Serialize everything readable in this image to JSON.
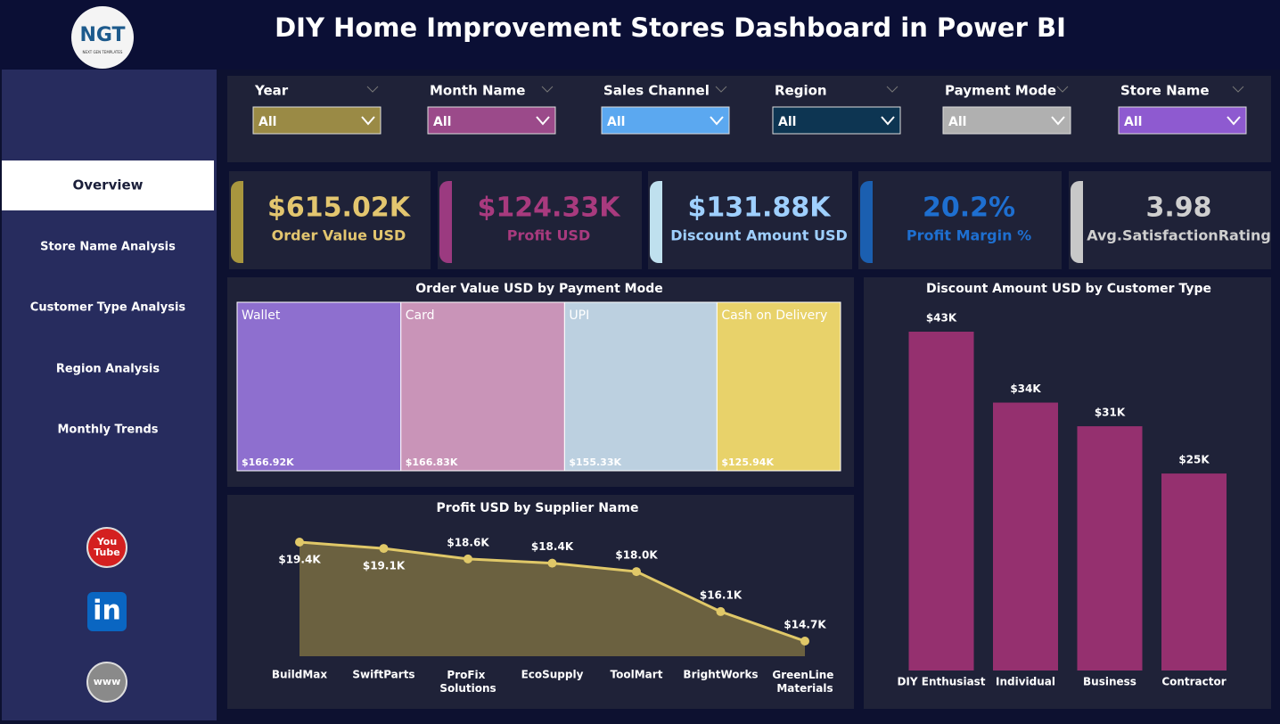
{
  "header": {
    "title": "DIY Home Improvement Stores Dashboard in Power BI",
    "logo": "NGT",
    "logo_tagline": "NEXT GEN TEMPLATES"
  },
  "nav": {
    "items": [
      "Overview",
      "Store Name Analysis",
      "Customer Type Analysis",
      "Region Analysis",
      "Monthly Trends"
    ],
    "active": 0
  },
  "social": [
    [
      "You",
      "Tube"
    ],
    [
      "in"
    ],
    [
      "www"
    ]
  ],
  "filters": [
    {
      "label": "Year",
      "value": "All",
      "color": "#9a8a45"
    },
    {
      "label": "Month Name",
      "value": "All",
      "color": "#9b4a8a"
    },
    {
      "label": "Sales Channel",
      "value": "All",
      "color": "#5ba8f0"
    },
    {
      "label": "Region",
      "value": "All",
      "color": "#0d3552"
    },
    {
      "label": "Payment Mode",
      "value": "All",
      "color": "#b0b0b0"
    },
    {
      "label": "Store Name",
      "value": "All",
      "color": "#8e5ad0"
    }
  ],
  "kpis": [
    {
      "value": "$615.02K",
      "label": "Order Value USD",
      "color": "#e3c66f",
      "accent": "#a8963e"
    },
    {
      "value": "$124.33K",
      "label": "Profit USD",
      "color": "#a83a7e",
      "accent": "#9b3a80"
    },
    {
      "value": "$131.88K",
      "label": "Discount Amount USD",
      "color": "#9fd0ff",
      "accent": "#bfe0ee"
    },
    {
      "value": "20.2%",
      "label": "Profit Margin %",
      "color": "#1e6fd0",
      "accent": "#1b5fb0"
    },
    {
      "value": "3.98",
      "label": "Avg.SatisfactionRating",
      "color": "#cfcfcf",
      "accent": "#c8c8c8"
    }
  ],
  "chart_data": [
    {
      "type": "treemap",
      "title": "Order Value USD by Payment Mode",
      "categories": [
        "Wallet",
        "Card",
        "UPI",
        "Cash on Delivery"
      ],
      "values": [
        166920,
        166830,
        155330,
        125940
      ],
      "value_labels": [
        "$166.92K",
        "$166.83K",
        "$155.33K",
        "$125.94K"
      ],
      "colors": [
        "#8e6fcf",
        "#c994b8",
        "#bcd0e0",
        "#e8d26a"
      ]
    },
    {
      "type": "area",
      "title": "Profit USD by Supplier Name",
      "categories": [
        "BuildMax",
        "SwiftParts",
        "ProFix Solutions",
        "EcoSupply",
        "ToolMart",
        "BrightWorks",
        "GreenLine Materials"
      ],
      "values": [
        19400,
        19100,
        18600,
        18400,
        18000,
        16100,
        14700
      ],
      "value_labels": [
        "$19.4K",
        "$19.1K",
        "$18.6K",
        "$18.4K",
        "$18.0K",
        "$16.1K",
        "$14.7K"
      ],
      "color": "#e0c868",
      "fill_color": "#6b6140"
    },
    {
      "type": "bar",
      "title": "Discount Amount USD by Customer Type",
      "categories": [
        "DIY Enthusiast",
        "Individual",
        "Business",
        "Contractor"
      ],
      "values": [
        43000,
        34000,
        31000,
        25000
      ],
      "value_labels": [
        "$43K",
        "$34K",
        "$31K",
        "$25K"
      ],
      "color": "#95306f"
    }
  ]
}
